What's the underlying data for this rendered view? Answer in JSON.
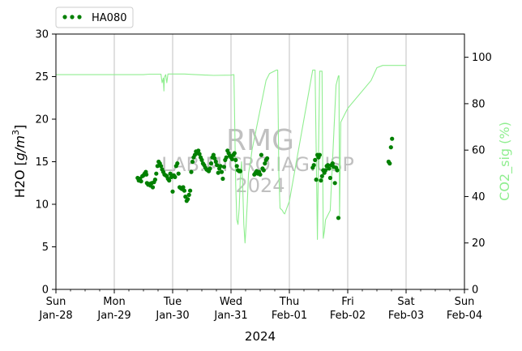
{
  "chart_data": {
    "type": "scatter",
    "title": "",
    "xlabel": "2024",
    "ylabel_left": "H2O [g/m³]",
    "ylabel_left_prefix": "H2O [",
    "ylabel_left_unit": "g/m",
    "ylabel_left_exp": "3",
    "ylabel_left_suffix": "]",
    "ylabel_right": "CO2_sig (%)",
    "x_range_days": [
      0,
      7
    ],
    "x_ticks": [
      {
        "day": 0,
        "line1": "Sun",
        "line2": "Jan-28"
      },
      {
        "day": 1,
        "line1": "Mon",
        "line2": "Jan-29"
      },
      {
        "day": 2,
        "line1": "Tue",
        "line2": "Jan-30"
      },
      {
        "day": 3,
        "line1": "Wed",
        "line2": "Jan-31"
      },
      {
        "day": 4,
        "line1": "Thu",
        "line2": "Feb-01"
      },
      {
        "day": 5,
        "line1": "Fri",
        "line2": "Feb-02"
      },
      {
        "day": 6,
        "line1": "Sat",
        "line2": "Feb-03"
      },
      {
        "day": 7,
        "line1": "Sun",
        "line2": "Feb-04"
      }
    ],
    "ylim_left": [
      0,
      30
    ],
    "yticks_left": [
      0,
      5,
      10,
      15,
      20,
      25,
      30
    ],
    "ylim_right": [
      0,
      110
    ],
    "yticks_right": [
      0,
      20,
      40,
      60,
      80,
      100
    ],
    "grid": "vertical",
    "legend_placement": "top-left",
    "watermark": [
      "RMG",
      "LAB.MICRO.IAG.USP",
      "2024"
    ],
    "colors": {
      "h2o": "#008000",
      "co2": "#90ee90",
      "grid": "#b0b0b0",
      "watermark": "#c0c0c0"
    },
    "series": [
      {
        "name": "HA080",
        "axis": "left",
        "style": "dots",
        "points": [
          [
            1.4,
            13.1
          ],
          [
            1.42,
            12.8
          ],
          [
            1.44,
            13.0
          ],
          [
            1.46,
            12.7
          ],
          [
            1.48,
            13.3
          ],
          [
            1.5,
            13.4
          ],
          [
            1.52,
            13.6
          ],
          [
            1.54,
            13.8
          ],
          [
            1.55,
            13.5
          ],
          [
            1.56,
            12.5
          ],
          [
            1.58,
            12.3
          ],
          [
            1.6,
            12.4
          ],
          [
            1.62,
            12.2
          ],
          [
            1.64,
            12.5
          ],
          [
            1.66,
            12.0
          ],
          [
            1.68,
            12.6
          ],
          [
            1.7,
            12.9
          ],
          [
            1.72,
            13.6
          ],
          [
            1.74,
            14.5
          ],
          [
            1.76,
            15.0
          ],
          [
            1.78,
            14.8
          ],
          [
            1.8,
            14.5
          ],
          [
            1.82,
            14.1
          ],
          [
            1.84,
            13.8
          ],
          [
            1.86,
            13.5
          ],
          [
            1.88,
            13.4
          ],
          [
            1.9,
            13.3
          ],
          [
            1.92,
            13.0
          ],
          [
            1.94,
            12.8
          ],
          [
            1.96,
            13.6
          ],
          [
            1.98,
            13.2
          ],
          [
            2.0,
            11.5
          ],
          [
            2.02,
            13.4
          ],
          [
            2.04,
            13.2
          ],
          [
            2.06,
            14.5
          ],
          [
            2.08,
            14.8
          ],
          [
            2.1,
            13.6
          ],
          [
            2.12,
            12.0
          ],
          [
            2.14,
            11.9
          ],
          [
            2.16,
            11.8
          ],
          [
            2.18,
            12.0
          ],
          [
            2.2,
            11.6
          ],
          [
            2.22,
            10.9
          ],
          [
            2.24,
            10.4
          ],
          [
            2.26,
            10.6
          ],
          [
            2.28,
            11.1
          ],
          [
            2.3,
            11.6
          ],
          [
            2.32,
            13.8
          ],
          [
            2.34,
            15.0
          ],
          [
            2.36,
            15.5
          ],
          [
            2.38,
            15.8
          ],
          [
            2.4,
            16.2
          ],
          [
            2.42,
            16.0
          ],
          [
            2.44,
            16.3
          ],
          [
            2.46,
            15.9
          ],
          [
            2.48,
            15.5
          ],
          [
            2.5,
            15.2
          ],
          [
            2.52,
            14.8
          ],
          [
            2.54,
            14.6
          ],
          [
            2.56,
            14.3
          ],
          [
            2.58,
            14.1
          ],
          [
            2.6,
            14.0
          ],
          [
            2.62,
            13.9
          ],
          [
            2.64,
            14.2
          ],
          [
            2.66,
            14.8
          ],
          [
            2.68,
            15.5
          ],
          [
            2.7,
            15.8
          ],
          [
            2.72,
            15.4
          ],
          [
            2.74,
            15.0
          ],
          [
            2.76,
            14.6
          ],
          [
            2.78,
            13.7
          ],
          [
            2.8,
            14.2
          ],
          [
            2.82,
            14.5
          ],
          [
            2.84,
            13.8
          ],
          [
            2.86,
            13.0
          ],
          [
            2.88,
            14.4
          ],
          [
            2.9,
            15.2
          ],
          [
            2.92,
            15.5
          ],
          [
            2.94,
            16.3
          ],
          [
            2.96,
            16.0
          ],
          [
            2.98,
            15.7
          ],
          [
            3.0,
            15.5
          ],
          [
            3.02,
            15.3
          ],
          [
            3.04,
            15.8
          ],
          [
            3.06,
            16.0
          ],
          [
            3.08,
            15.2
          ],
          [
            3.1,
            14.5
          ],
          [
            3.12,
            14.0
          ],
          [
            3.14,
            13.9
          ],
          [
            3.16,
            13.9
          ],
          [
            3.4,
            13.5
          ],
          [
            3.42,
            13.7
          ],
          [
            3.44,
            13.9
          ],
          [
            3.46,
            13.6
          ],
          [
            3.48,
            13.8
          ],
          [
            3.5,
            13.5
          ],
          [
            3.52,
            15.8
          ],
          [
            3.54,
            14.2
          ],
          [
            3.56,
            14.0
          ],
          [
            3.58,
            14.8
          ],
          [
            3.6,
            15.2
          ],
          [
            3.62,
            15.4
          ],
          [
            4.4,
            14.3
          ],
          [
            4.42,
            14.6
          ],
          [
            4.44,
            15.2
          ],
          [
            4.46,
            12.9
          ],
          [
            4.48,
            15.8
          ],
          [
            4.5,
            15.5
          ],
          [
            4.52,
            15.8
          ],
          [
            4.54,
            12.8
          ],
          [
            4.56,
            13.3
          ],
          [
            4.58,
            14.0
          ],
          [
            4.6,
            13.7
          ],
          [
            4.62,
            14.0
          ],
          [
            4.64,
            14.5
          ],
          [
            4.66,
            14.6
          ],
          [
            4.68,
            14.2
          ],
          [
            4.7,
            13.1
          ],
          [
            4.72,
            14.6
          ],
          [
            4.74,
            14.8
          ],
          [
            4.76,
            14.4
          ],
          [
            4.78,
            12.5
          ],
          [
            4.8,
            14.3
          ],
          [
            4.82,
            14.0
          ],
          [
            4.84,
            8.4
          ],
          [
            5.7,
            15.0
          ],
          [
            5.72,
            14.8
          ],
          [
            5.74,
            16.7
          ],
          [
            5.76,
            17.7
          ]
        ]
      },
      {
        "name": "CO2_sig",
        "axis": "right",
        "style": "line",
        "points": [
          [
            0.0,
            92.5
          ],
          [
            1.5,
            92.5
          ],
          [
            1.6,
            92.7
          ],
          [
            1.8,
            92.7
          ],
          [
            1.82,
            89.0
          ],
          [
            1.84,
            91.0
          ],
          [
            1.85,
            85.5
          ],
          [
            1.86,
            91.5
          ],
          [
            1.88,
            92.5
          ],
          [
            1.9,
            89.0
          ],
          [
            1.92,
            92.8
          ],
          [
            2.2,
            92.8
          ],
          [
            2.4,
            92.5
          ],
          [
            2.6,
            92.3
          ],
          [
            2.7,
            92.2
          ],
          [
            3.0,
            92.3
          ],
          [
            3.05,
            92.5
          ],
          [
            3.08,
            45.0
          ],
          [
            3.1,
            30.0
          ],
          [
            3.12,
            28.0
          ],
          [
            3.14,
            35.0
          ],
          [
            3.16,
            48.0
          ],
          [
            3.18,
            55.0
          ],
          [
            3.2,
            45.0
          ],
          [
            3.22,
            28.0
          ],
          [
            3.24,
            20.0
          ],
          [
            3.26,
            28.0
          ],
          [
            3.28,
            38.0
          ],
          [
            3.3,
            50.0
          ],
          [
            3.34,
            56.0
          ],
          [
            3.36,
            60.0
          ],
          [
            3.6,
            90.0
          ],
          [
            3.66,
            93.0
          ],
          [
            3.78,
            94.5
          ],
          [
            3.8,
            94.5
          ],
          [
            3.82,
            50.0
          ],
          [
            3.84,
            35.0
          ],
          [
            3.88,
            34.0
          ],
          [
            3.9,
            33.0
          ],
          [
            3.92,
            32.5
          ],
          [
            4.0,
            38.0
          ],
          [
            4.4,
            94.5
          ],
          [
            4.44,
            94.5
          ],
          [
            4.48,
            21.5
          ],
          [
            4.5,
            60.0
          ],
          [
            4.52,
            94.0
          ],
          [
            4.54,
            94.0
          ],
          [
            4.56,
            94.0
          ],
          [
            4.58,
            22.0
          ],
          [
            4.6,
            25.0
          ],
          [
            4.62,
            30.0
          ],
          [
            4.7,
            34.0
          ],
          [
            4.8,
            88.0
          ],
          [
            4.84,
            92.0
          ],
          [
            4.85,
            92.0
          ],
          [
            4.86,
            31.0
          ],
          [
            4.88,
            72.0
          ],
          [
            4.92,
            74.0
          ],
          [
            5.0,
            78.0
          ],
          [
            5.4,
            90.0
          ],
          [
            5.5,
            95.5
          ],
          [
            5.6,
            96.5
          ],
          [
            5.7,
            96.5
          ],
          [
            6.0,
            96.5
          ]
        ]
      }
    ]
  }
}
